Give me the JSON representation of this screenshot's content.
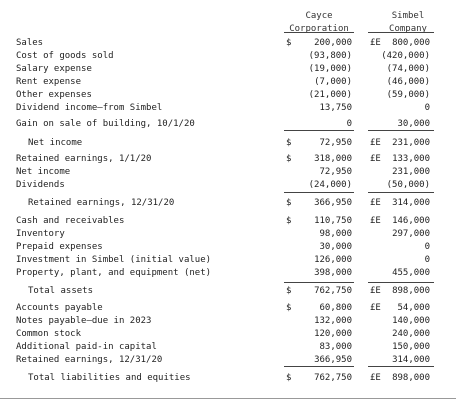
{
  "columns": {
    "c1": [
      "Cayce",
      "Corporation"
    ],
    "c2": [
      "Simbel",
      "Company"
    ]
  },
  "rows": [
    {
      "label": "Sales",
      "s1": "$",
      "v1": "200,000",
      "s2": "£E",
      "v2": "800,000"
    },
    {
      "label": "Cost of goods sold",
      "s1": "",
      "v1": "(93,800)",
      "s2": "",
      "v2": "(420,000)"
    },
    {
      "label": "Salary expense",
      "s1": "",
      "v1": "(19,000)",
      "s2": "",
      "v2": "(74,000)"
    },
    {
      "label": "Rent expense",
      "s1": "",
      "v1": "(7,000)",
      "s2": "",
      "v2": "(46,000)"
    },
    {
      "label": "Other expenses",
      "s1": "",
      "v1": "(21,000)",
      "s2": "",
      "v2": "(59,000)"
    },
    {
      "label": "Dividend income—from Simbel",
      "s1": "",
      "v1": "13,750",
      "s2": "",
      "v2": "0"
    },
    {
      "label": "Gain on sale of building, 10/1/20",
      "s1": "",
      "v1": "0",
      "s2": "",
      "v2": "30,000"
    },
    {
      "label": "Net income",
      "s1": "$",
      "v1": "72,950",
      "s2": "£E",
      "v2": "231,000",
      "indent": true
    },
    {
      "label": "Retained earnings, 1/1/20",
      "s1": "$",
      "v1": "318,000",
      "s2": "£E",
      "v2": "133,000"
    },
    {
      "label": "Net income",
      "s1": "",
      "v1": "72,950",
      "s2": "",
      "v2": "231,000"
    },
    {
      "label": "Dividends",
      "s1": "",
      "v1": "(24,000)",
      "s2": "",
      "v2": "(50,000)"
    },
    {
      "label": "Retained earnings, 12/31/20",
      "s1": "$",
      "v1": "366,950",
      "s2": "£E",
      "v2": "314,000",
      "indent": true
    },
    {
      "label": "Cash and receivables",
      "s1": "$",
      "v1": "110,750",
      "s2": "£E",
      "v2": "146,000"
    },
    {
      "label": "Inventory",
      "s1": "",
      "v1": "98,000",
      "s2": "",
      "v2": "297,000"
    },
    {
      "label": "Prepaid expenses",
      "s1": "",
      "v1": "30,000",
      "s2": "",
      "v2": "0"
    },
    {
      "label": "Investment in Simbel (initial value)",
      "s1": "",
      "v1": "126,000",
      "s2": "",
      "v2": "0"
    },
    {
      "label": "Property, plant, and equipment (net)",
      "s1": "",
      "v1": "398,000",
      "s2": "",
      "v2": "455,000"
    },
    {
      "label": "Total assets",
      "s1": "$",
      "v1": "762,750",
      "s2": "£E",
      "v2": "898,000",
      "indent": true
    },
    {
      "label": "Accounts payable",
      "s1": "$",
      "v1": "60,800",
      "s2": "£E",
      "v2": "54,000"
    },
    {
      "label": "Notes payable—due in 2023",
      "s1": "",
      "v1": "132,000",
      "s2": "",
      "v2": "140,000"
    },
    {
      "label": "Common stock",
      "s1": "",
      "v1": "120,000",
      "s2": "",
      "v2": "240,000"
    },
    {
      "label": "Additional paid-in capital",
      "s1": "",
      "v1": "83,000",
      "s2": "",
      "v2": "150,000"
    },
    {
      "label": "Retained earnings, 12/31/20",
      "s1": "",
      "v1": "366,950",
      "s2": "",
      "v2": "314,000"
    },
    {
      "label": "Total liabilities and equities",
      "s1": "$",
      "v1": "762,750",
      "s2": "£E",
      "v2": "898,000",
      "indent": true
    }
  ]
}
